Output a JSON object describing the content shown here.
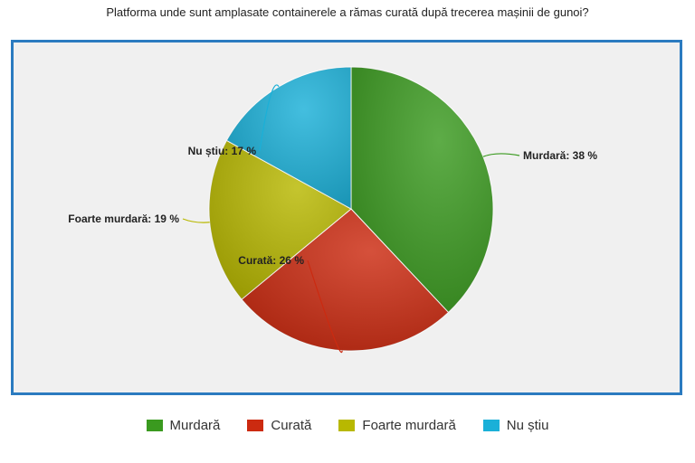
{
  "chart_data": {
    "type": "pie",
    "title": "Platforma unde sunt amplasate containerele a rămas curată după trecerea mașinii de gunoi?",
    "slices": [
      {
        "name": "Murdară",
        "value": 38,
        "label": "Murdară: 38 %",
        "color": "#3a9a1f"
      },
      {
        "name": "Curată",
        "value": 26,
        "label": "Curată: 26 %",
        "color": "#cc2a10"
      },
      {
        "name": "Foarte murdară",
        "value": 19,
        "label": "Foarte murdară: 19 %",
        "color": "#b8b800"
      },
      {
        "name": "Nu știu",
        "value": 17,
        "label": "Nu știu: 17 %",
        "color": "#1ab0d8"
      }
    ],
    "legend_position": "bottom",
    "start_angle_deg": 0,
    "direction": "clockwise"
  }
}
